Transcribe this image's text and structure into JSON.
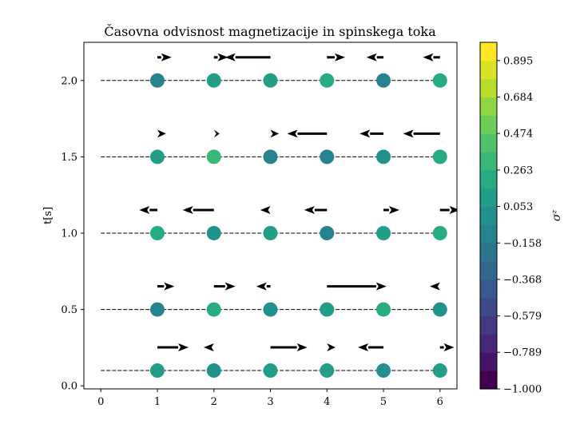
{
  "chart_data": {
    "type": "scatter",
    "title": "Časovna odvisnost magnetizacije in spinskega toka",
    "xlabel": "",
    "ylabel": "t[s]",
    "xlim": [
      -0.3,
      6.3
    ],
    "ylim": [
      -0.02,
      2.25
    ],
    "xticks": [
      "0",
      "1",
      "2",
      "3",
      "4",
      "5",
      "6"
    ],
    "yticks": [
      "0.0",
      "0.5",
      "1.0",
      "1.5",
      "2.0"
    ],
    "rows": [
      {
        "t": 0.1,
        "sigma_z": [
          0.12,
          -0.05,
          0.13,
          0.08,
          0.0,
          0.06
        ],
        "current": [
          0.55,
          -0.18,
          0.65,
          0.15,
          -0.45,
          0.25
        ]
      },
      {
        "t": 0.5,
        "sigma_z": [
          -0.1,
          0.18,
          -0.02,
          0.08,
          0.25,
          -0.03
        ],
        "current": [
          0.3,
          0.38,
          -0.25,
          1.05,
          0,
          -0.18
        ]
      },
      {
        "t": 1.0,
        "sigma_z": [
          0.16,
          -0.03,
          0.12,
          -0.07,
          0.12,
          0.18
        ],
        "current": [
          -0.32,
          -0.55,
          -0.18,
          -0.4,
          0.28,
          0.35
        ]
      },
      {
        "t": 1.5,
        "sigma_z": [
          0.12,
          0.3,
          -0.07,
          -0.14,
          0.02,
          0.18
        ],
        "current": [
          0.15,
          0.1,
          0.15,
          -0.7,
          -0.42,
          -0.65
        ]
      },
      {
        "t": 2.0,
        "sigma_z": [
          -0.06,
          0.12,
          0.08,
          0.25,
          -0.12,
          0.16
        ],
        "current": [
          0.25,
          0.25,
          -0.8,
          0.32,
          -0.3,
          -0.3
        ]
      }
    ],
    "colorbar": {
      "label": "σᶻ",
      "min": -1.0,
      "max": 1.0,
      "ticks": [
        "0.895",
        "0.684",
        "0.474",
        "0.263",
        "0.053",
        "−0.158",
        "−0.368",
        "−0.579",
        "−0.789",
        "−1.000"
      ],
      "tick_values": [
        0.895,
        0.684,
        0.474,
        0.263,
        0.053,
        -0.158,
        -0.368,
        -0.579,
        -0.789,
        -1.0
      ],
      "colormap": "viridis",
      "bands": 19
    }
  }
}
